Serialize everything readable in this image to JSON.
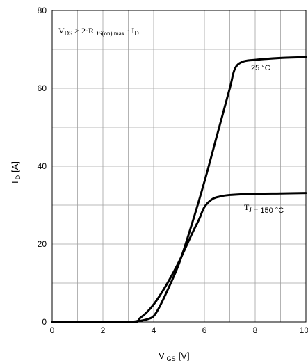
{
  "chart_data": {
    "type": "line",
    "xlabel": "V",
    "xlabel_sub": "GS",
    "xlabel_unit": "[V]",
    "ylabel": "I",
    "ylabel_sub": "D",
    "ylabel_unit": "[A]",
    "xlim": [
      0,
      10
    ],
    "ylim": [
      0,
      80
    ],
    "xticks": [
      0,
      2,
      4,
      6,
      8,
      10
    ],
    "yticks": [
      0,
      20,
      40,
      60,
      80
    ],
    "x_gridlines": [
      0,
      1,
      2,
      3,
      4,
      5,
      6,
      7,
      8,
      9,
      10
    ],
    "y_gridlines": [
      0,
      10,
      20,
      30,
      40,
      50,
      60,
      70,
      80
    ],
    "grid": true,
    "condition_annotation": {
      "lhs": "V",
      "lhs_sub": "DS",
      "relation": " > 2·R",
      "rds_sub": "DS(on) max",
      "tail": " · I",
      "tail_sub": "D"
    },
    "series": [
      {
        "label_text": "25 °C",
        "x": [
          0,
          3.0,
          3.4,
          3.8,
          4.0,
          4.2,
          4.5,
          5.0,
          5.5,
          6.0,
          6.5,
          7.0,
          7.2,
          7.5,
          8.0,
          9.0,
          10.0
        ],
        "y": [
          0,
          0,
          0.2,
          0.8,
          1.5,
          3.5,
          7.5,
          15,
          25,
          36,
          48,
          60,
          65,
          66.8,
          67.3,
          67.8,
          68.0
        ]
      },
      {
        "label_main": "T",
        "label_sub": "J",
        "label_tail": " = 150 °C",
        "x": [
          0,
          3.0,
          3.5,
          4.0,
          4.5,
          5.0,
          5.5,
          5.8,
          6.0,
          6.3,
          6.6,
          7.0,
          8.0,
          9.0,
          10.0
        ],
        "y": [
          0,
          0,
          1.2,
          4.5,
          9.5,
          15.5,
          22.5,
          26.5,
          29.5,
          31.5,
          32.2,
          32.6,
          32.9,
          33.0,
          33.1
        ]
      }
    ]
  }
}
